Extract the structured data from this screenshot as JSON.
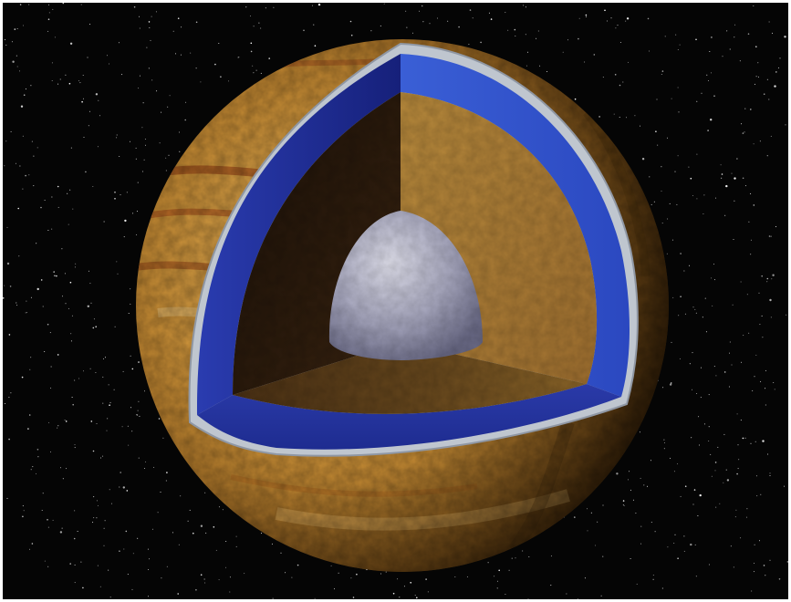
{
  "scene": {
    "subject": "cutaway-planet-interior",
    "colors": {
      "background": "#050505",
      "border": "#ffffff",
      "surface_light": "#d9a24a",
      "surface_mid": "#b8832f",
      "surface_dark": "#7a4a14",
      "band": "#8a3a12",
      "ice_shell": "#bfc6cf",
      "ocean_light": "#3b5fd0",
      "ocean_dark": "#1c2a8a",
      "mantle_light": "#b88a3c",
      "mantle_dark": "#2a1a0c",
      "core_light": "#c9c9d8",
      "core_dark": "#6c6c86"
    },
    "layers": [
      "ice-shell",
      "ocean",
      "mantle",
      "core"
    ]
  }
}
